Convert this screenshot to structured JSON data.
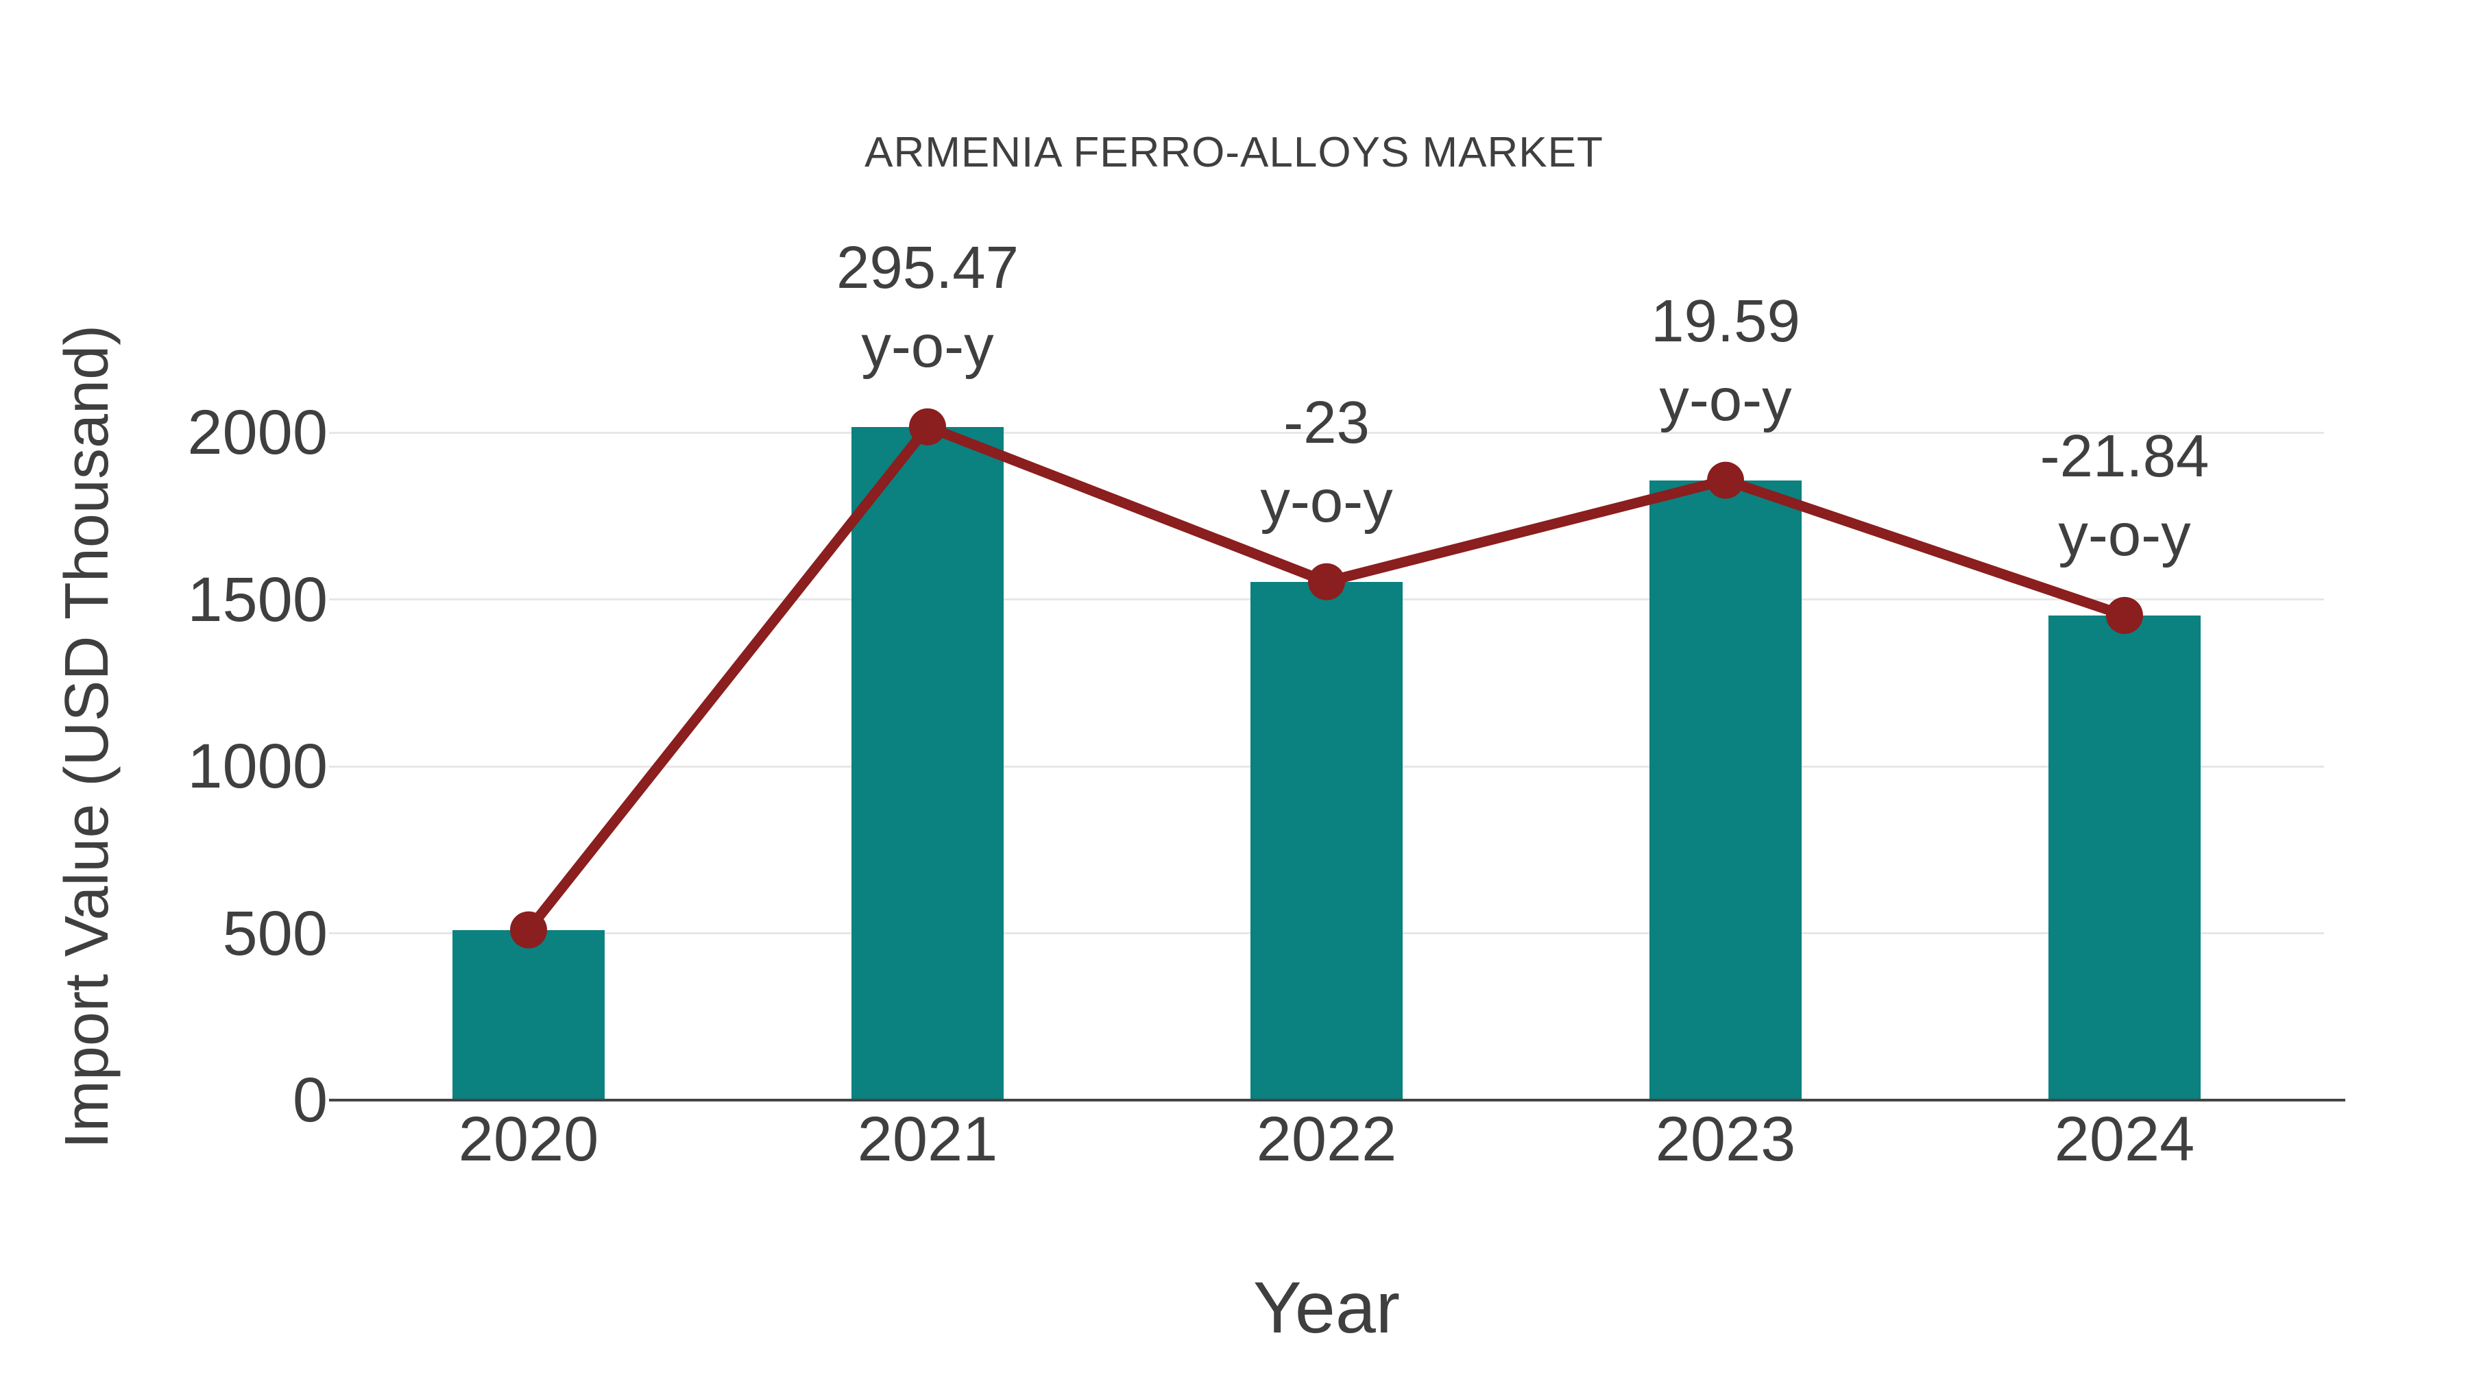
{
  "title": "ARMENIA FERRO-ALLOYS MARKET",
  "y_axis": {
    "label": "Import Value (USD Thousand)",
    "ticks": [
      0,
      500,
      1000,
      1500,
      2000
    ]
  },
  "x_axis": {
    "label": "Year"
  },
  "chart_data": {
    "type": "bar",
    "title": "ARMENIA FERRO-ALLOYS MARKET",
    "xlabel": "Year",
    "ylabel": "Import Value (USD Thousand)",
    "categories": [
      "2020",
      "2021",
      "2022",
      "2023",
      "2024"
    ],
    "series": [
      {
        "name": "Import Value bars",
        "type": "bar",
        "values": [
          510,
          2017,
          1553,
          1857,
          1452
        ],
        "color": "#0B8180"
      },
      {
        "name": "Import Value trend line",
        "type": "line",
        "values": [
          510,
          2017,
          1553,
          1857,
          1452
        ],
        "color": "#8B1E1E"
      }
    ],
    "annotations": [
      {
        "category": "2021",
        "value_label": "295.47",
        "unit_label": "y-o-y"
      },
      {
        "category": "2022",
        "value_label": "-23",
        "unit_label": "y-o-y"
      },
      {
        "category": "2023",
        "value_label": "19.59",
        "unit_label": "y-o-y"
      },
      {
        "category": "2024",
        "value_label": "-21.84",
        "unit_label": "y-o-y"
      }
    ],
    "ylim": [
      0,
      2000
    ],
    "grid": "horizontal",
    "legend": "none"
  },
  "colors": {
    "bar": "#0B8180",
    "line": "#8B1E1E",
    "text": "#3F3F3F",
    "gridline": "#E7E7E7",
    "axis_line": "#444444",
    "background": "#FFFFFF"
  }
}
